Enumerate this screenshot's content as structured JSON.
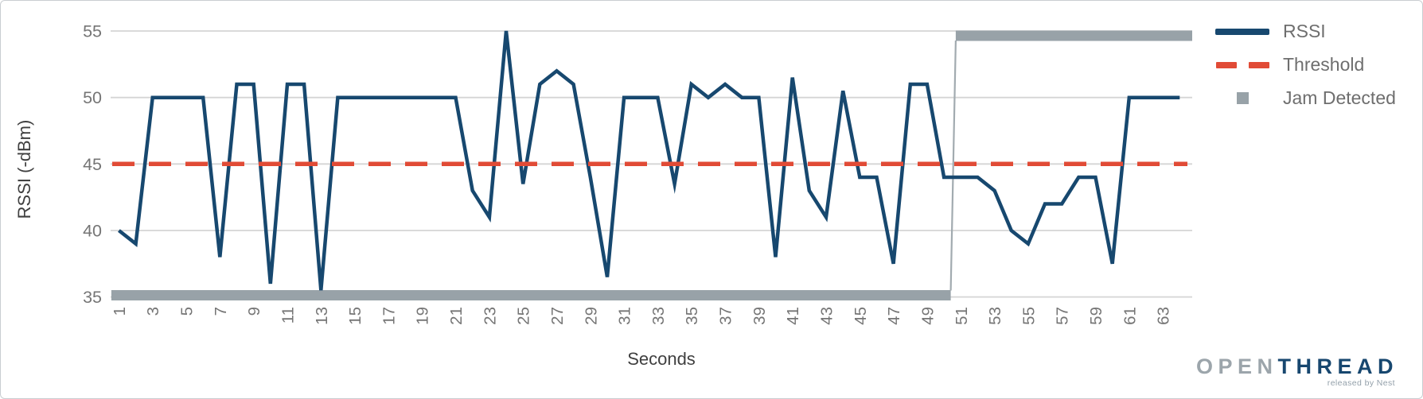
{
  "chart_data": {
    "type": "line",
    "title": "",
    "xlabel": "Seconds",
    "ylabel": "RSSI (-dBm)",
    "grid": "horizontal",
    "legend_position": "right-top",
    "xlim": [
      0.55,
      64.9
    ],
    "ylim": [
      35,
      55
    ],
    "x_ticks": [
      1,
      3,
      5,
      7,
      9,
      11,
      13,
      15,
      17,
      19,
      21,
      23,
      25,
      27,
      29,
      31,
      33,
      35,
      37,
      39,
      41,
      43,
      45,
      47,
      49,
      51,
      53,
      55,
      57,
      59,
      61,
      63
    ],
    "y_ticks": [
      35,
      40,
      45,
      50,
      55
    ],
    "x": [
      1,
      2,
      3,
      4,
      5,
      6,
      7,
      8,
      9,
      10,
      11,
      12,
      13,
      14,
      15,
      16,
      17,
      18,
      19,
      20,
      21,
      22,
      23,
      24,
      25,
      26,
      27,
      28,
      29,
      30,
      31,
      32,
      33,
      34,
      35,
      36,
      37,
      38,
      39,
      40,
      41,
      42,
      43,
      44,
      45,
      46,
      47,
      48,
      49,
      50,
      51,
      52,
      53,
      54,
      55,
      56,
      57,
      58,
      59,
      60,
      61,
      62,
      63,
      64
    ],
    "series": [
      {
        "name": "RSSI",
        "type": "line",
        "color": "#17486F",
        "style": "solid",
        "values": [
          40,
          39,
          50,
          50,
          50,
          50,
          38,
          51,
          51,
          36,
          51,
          51,
          35.5,
          50,
          50,
          50,
          50,
          50,
          50,
          50,
          50,
          43,
          41,
          55,
          43.5,
          51,
          52,
          51,
          44,
          36.5,
          50,
          50,
          50,
          43.5,
          51,
          50,
          51,
          50,
          50,
          38,
          51.5,
          43,
          41,
          50.5,
          44,
          44,
          37.5,
          51,
          51,
          44,
          44,
          44,
          43,
          40,
          39,
          42,
          42,
          44,
          44,
          37.5,
          50,
          50,
          50,
          50
        ]
      },
      {
        "name": "Threshold",
        "type": "horizontal-line",
        "color": "#E14B36",
        "style": "dashed",
        "value": 45
      },
      {
        "name": "Jam Detected",
        "type": "step",
        "color": "#98A2A8",
        "style": "thick",
        "segments": [
          {
            "from_x": 0.55,
            "to_x": 50.4,
            "value": 35
          },
          {
            "from_x": 50.7,
            "to_x": 64.75,
            "value": 55
          }
        ]
      }
    ],
    "legend": [
      {
        "label": "RSSI",
        "swatch": "line",
        "color": "#17486F"
      },
      {
        "label": "Threshold",
        "swatch": "dashed-line",
        "color": "#E14B36"
      },
      {
        "label": "Jam Detected",
        "swatch": "square",
        "color": "#98A2A8"
      }
    ],
    "colors": {
      "gridline": "#D5D5D5",
      "tick_label": "#757575",
      "axis_title": "#3F3F3F",
      "jam_connector": "#A2ABB0"
    }
  },
  "branding": {
    "logo_primary": "OPEN",
    "logo_secondary": "THREAD",
    "logo_tagline": "released by Nest"
  }
}
